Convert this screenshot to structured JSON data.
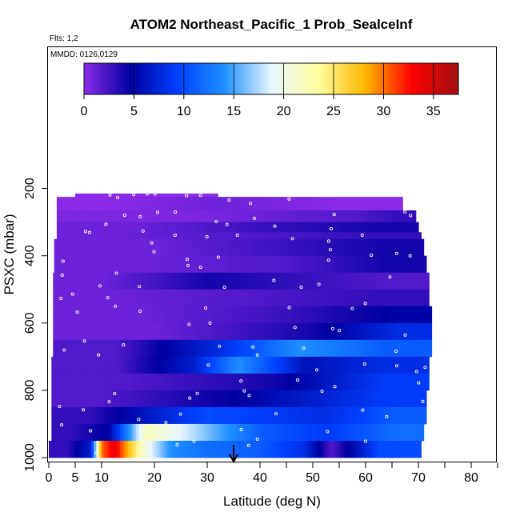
{
  "chart_data": {
    "type": "heatmap",
    "title": "ATOM2 Northeast_Pacific_1 Prob_SealceInf",
    "annotations": {
      "flights": "Flts: 1,2",
      "dates": "MMDD: 0126,0129"
    },
    "xlabel": "Latitude (deg N)",
    "ylabel": "PSXC (mbar)",
    "xlim": [
      0,
      85
    ],
    "ylim": [
      1000,
      50
    ],
    "y_reversed": true,
    "x_ticks": [
      0,
      5,
      10,
      20,
      30,
      40,
      50,
      60,
      70,
      80
    ],
    "x_extra_ticks": [
      45,
      55,
      65,
      75,
      85
    ],
    "y_ticks": [
      200,
      400,
      600,
      800,
      1000
    ],
    "colorbar": {
      "ticks": [
        0,
        5,
        10,
        15,
        20,
        25,
        30,
        35
      ],
      "range": [
        0,
        37.5
      ],
      "colors": [
        "#8B2BE8",
        "#0000A0",
        "#0040FF",
        "#1E90FF",
        "#E8F6FF",
        "#FFFFA0",
        "#FFB800",
        "#FF0000",
        "#A01010"
      ]
    },
    "marker_latitude": 35,
    "layers": [
      {
        "p": [
          215,
          225
        ],
        "lat": [
          5,
          32
        ],
        "segs": [
          [
            5,
            32,
            0
          ]
        ]
      },
      {
        "p": [
          225,
          265
        ],
        "lat": [
          1.5,
          67
        ],
        "segs": [
          [
            1.5,
            20,
            0
          ],
          [
            20,
            45,
            1
          ],
          [
            45,
            67,
            0
          ]
        ]
      },
      {
        "p": [
          265,
          300
        ],
        "lat": [
          1.5,
          69.5
        ],
        "segs": [
          [
            1.5,
            55,
            0.5
          ],
          [
            55,
            62,
            2
          ],
          [
            62,
            69.5,
            3
          ]
        ]
      },
      {
        "p": [
          300,
          330
        ],
        "lat": [
          1.5,
          70
        ],
        "segs": [
          [
            1.5,
            30,
            1
          ],
          [
            30,
            55,
            3
          ],
          [
            55,
            70,
            4
          ]
        ]
      },
      {
        "p": [
          330,
          350
        ],
        "lat": [
          1.5,
          70.5
        ],
        "segs": [
          [
            1.5,
            20,
            1
          ],
          [
            20,
            55,
            2
          ],
          [
            55,
            70.5,
            3
          ]
        ]
      },
      {
        "p": [
          350,
          400
        ],
        "lat": [
          1,
          71
        ],
        "segs": [
          [
            1,
            40,
            1
          ],
          [
            40,
            55,
            3
          ],
          [
            55,
            71,
            4
          ]
        ]
      },
      {
        "p": [
          400,
          450
        ],
        "lat": [
          1,
          71.5
        ],
        "segs": [
          [
            1,
            35,
            1
          ],
          [
            35,
            55,
            2
          ],
          [
            55,
            71.5,
            4
          ]
        ]
      },
      {
        "p": [
          450,
          500
        ],
        "lat": [
          0.8,
          72
        ],
        "segs": [
          [
            0.8,
            20,
            1
          ],
          [
            20,
            40,
            4
          ],
          [
            40,
            55,
            3
          ],
          [
            55,
            72,
            2
          ]
        ]
      },
      {
        "p": [
          500,
          550
        ],
        "lat": [
          0.8,
          72
        ],
        "segs": [
          [
            0.8,
            25,
            1
          ],
          [
            25,
            50,
            2
          ],
          [
            50,
            72,
            3
          ]
        ]
      },
      {
        "p": [
          550,
          600
        ],
        "lat": [
          0.8,
          72.5
        ],
        "segs": [
          [
            0.8,
            35,
            1
          ],
          [
            35,
            60,
            3
          ],
          [
            60,
            72.5,
            5
          ]
        ]
      },
      {
        "p": [
          600,
          650
        ],
        "lat": [
          0.8,
          72.5
        ],
        "segs": [
          [
            0.8,
            40,
            1
          ],
          [
            40,
            60,
            4
          ],
          [
            60,
            72.5,
            8
          ]
        ]
      },
      {
        "p": [
          650,
          700
        ],
        "lat": [
          0.8,
          72.5
        ],
        "segs": [
          [
            0.8,
            25,
            2
          ],
          [
            25,
            40,
            8
          ],
          [
            40,
            55,
            14
          ],
          [
            55,
            72.5,
            11
          ]
        ]
      },
      {
        "p": [
          700,
          750
        ],
        "lat": [
          0.5,
          72
        ],
        "segs": [
          [
            0.5,
            25,
            2
          ],
          [
            25,
            30,
            7
          ],
          [
            30,
            42,
            14
          ],
          [
            42,
            55,
            6
          ],
          [
            55,
            72,
            8
          ]
        ]
      },
      {
        "p": [
          750,
          800
        ],
        "lat": [
          0.5,
          72
        ],
        "segs": [
          [
            0.5,
            30,
            2
          ],
          [
            30,
            55,
            4
          ],
          [
            55,
            72,
            9
          ]
        ]
      },
      {
        "p": [
          800,
          850
        ],
        "lat": [
          0.5,
          71.5
        ],
        "segs": [
          [
            0.5,
            20,
            2
          ],
          [
            20,
            55,
            5
          ],
          [
            55,
            71.5,
            9
          ]
        ]
      },
      {
        "p": [
          850,
          900
        ],
        "lat": [
          0.5,
          71.5
        ],
        "segs": [
          [
            0.5,
            15,
            3
          ],
          [
            15,
            45,
            10
          ],
          [
            45,
            60,
            8
          ],
          [
            60,
            71.5,
            11
          ]
        ]
      },
      {
        "p": [
          900,
          950
        ],
        "lat": [
          0.5,
          71
        ],
        "segs": [
          [
            0.5,
            8,
            3
          ],
          [
            8,
            15,
            5
          ],
          [
            15,
            22,
            22
          ],
          [
            22,
            35,
            17
          ],
          [
            35,
            45,
            11
          ],
          [
            45,
            60,
            9
          ],
          [
            60,
            71,
            12
          ]
        ]
      },
      {
        "p": [
          950,
          1000
        ],
        "lat": [
          0,
          70.5
        ],
        "segs": [
          [
            0,
            7,
            3
          ],
          [
            7,
            9,
            7
          ],
          [
            9,
            11,
            30
          ],
          [
            11,
            14,
            34
          ],
          [
            14,
            16,
            28
          ],
          [
            16,
            21,
            20
          ],
          [
            21,
            25,
            14
          ],
          [
            25,
            35,
            12
          ],
          [
            35,
            45,
            11
          ],
          [
            45,
            52,
            8
          ],
          [
            52,
            55,
            2
          ],
          [
            55,
            70.5,
            10
          ]
        ]
      }
    ]
  }
}
